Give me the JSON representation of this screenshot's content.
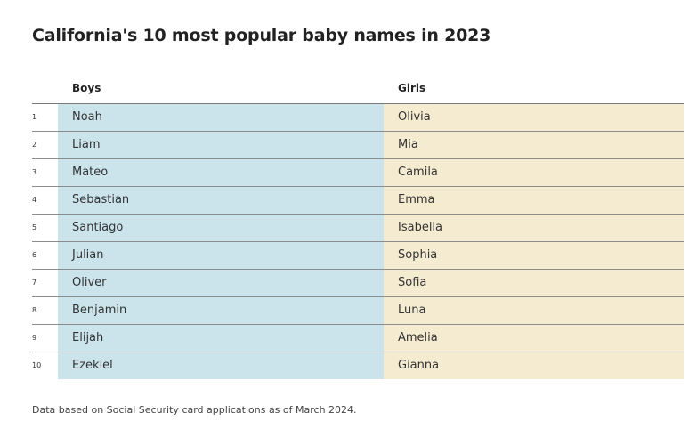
{
  "title": "California's 10 most popular baby names in 2023",
  "columns": {
    "boys": "Boys",
    "girls": "Girls"
  },
  "rows": [
    {
      "rank": "1",
      "boy": "Noah",
      "girl": "Olivia"
    },
    {
      "rank": "2",
      "boy": "Liam",
      "girl": "Mia"
    },
    {
      "rank": "3",
      "boy": "Mateo",
      "girl": "Camila"
    },
    {
      "rank": "4",
      "boy": "Sebastian",
      "girl": "Emma"
    },
    {
      "rank": "5",
      "boy": "Santiago",
      "girl": "Isabella"
    },
    {
      "rank": "6",
      "boy": "Julian",
      "girl": "Sophia"
    },
    {
      "rank": "7",
      "boy": "Oliver",
      "girl": "Sofia"
    },
    {
      "rank": "8",
      "boy": "Benjamin",
      "girl": "Luna"
    },
    {
      "rank": "9",
      "boy": "Elijah",
      "girl": "Amelia"
    },
    {
      "rank": "10",
      "boy": "Ezekiel",
      "girl": "Gianna"
    }
  ],
  "note": "Data based on Social Security card applications as of March 2024.",
  "colors": {
    "boys_bg": "#cbe4ec",
    "girls_bg": "#f4ebd0"
  }
}
